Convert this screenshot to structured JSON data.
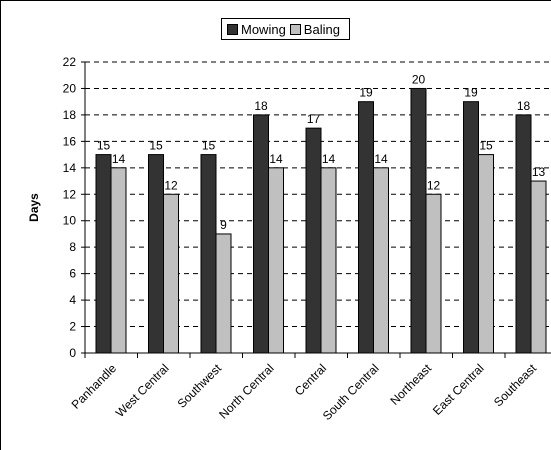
{
  "chart_data": {
    "type": "bar",
    "categories": [
      "Panhandle",
      "West Central",
      "Southwest",
      "North Central",
      "Central",
      "South Central",
      "Northeast",
      "East Central",
      "Southeast"
    ],
    "series": [
      {
        "name": "Mowing",
        "values": [
          15,
          15,
          15,
          18,
          17,
          19,
          20,
          19,
          18
        ],
        "color": "#333333"
      },
      {
        "name": "Baling",
        "values": [
          14,
          12,
          9,
          14,
          14,
          14,
          12,
          15,
          13
        ],
        "color": "#c0c0c0"
      }
    ],
    "ylabel": "Days",
    "xlabel": "",
    "ylim": [
      0,
      22
    ],
    "yticks": [
      0,
      2,
      4,
      6,
      8,
      10,
      12,
      14,
      16,
      18,
      20,
      22
    ],
    "grid": true,
    "legend_position": "top-center"
  }
}
